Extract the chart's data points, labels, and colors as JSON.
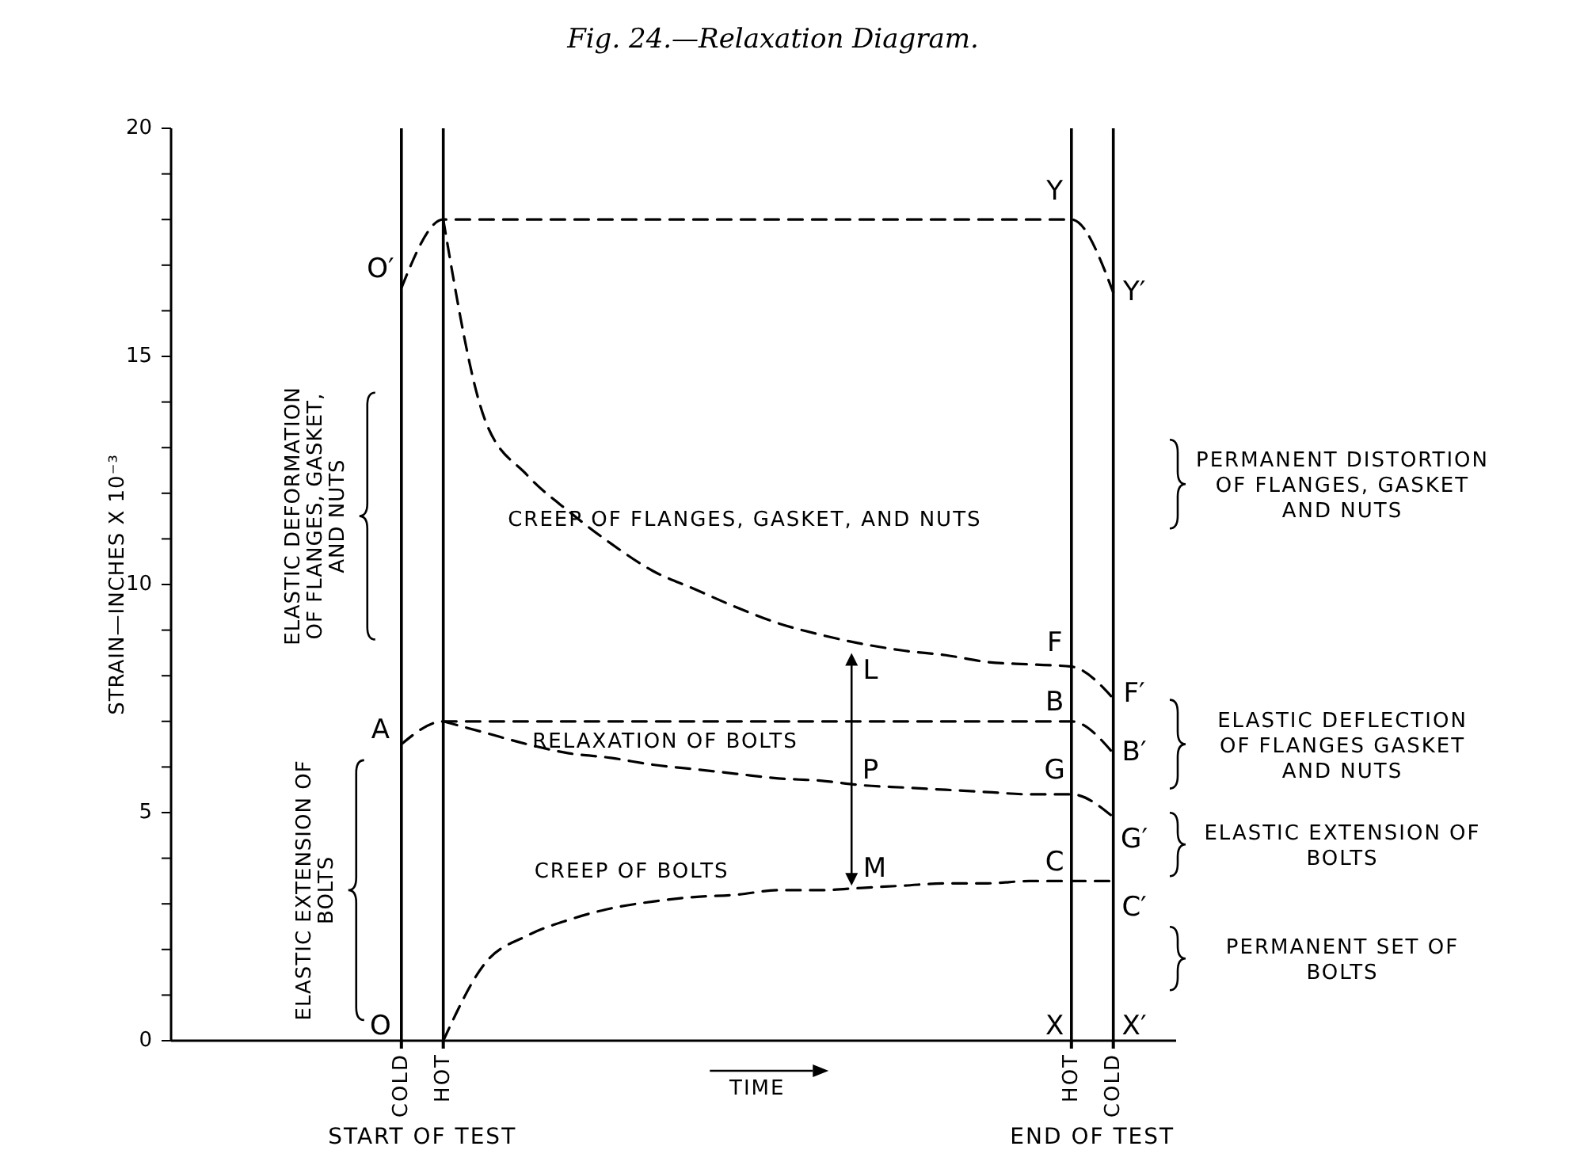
{
  "chart_data": {
    "type": "line",
    "title": "Fig. 24.—Relaxation Diagram.",
    "ylabel": "STRAIN—INCHES X 10⁻³",
    "xlabel": "TIME",
    "categories": [
      null,
      null,
      null,
      null,
      null,
      "COLD",
      "HOT",
      null,
      null,
      null,
      null,
      null,
      null,
      null,
      null,
      null,
      null,
      null,
      null,
      null,
      null,
      "HOT",
      "COLD",
      null
    ],
    "ylim": [
      0,
      20
    ],
    "yticks": [
      0,
      {
        "value": 1,
        "label": null
      },
      {
        "value": 2,
        "label": null
      },
      {
        "value": 3,
        "label": null
      },
      {
        "value": 4,
        "label": null
      },
      5,
      {
        "value": 6,
        "label": null
      },
      {
        "value": 7,
        "label": null
      },
      {
        "value": 8,
        "label": null
      },
      {
        "value": 9,
        "label": null
      },
      10,
      {
        "value": 11,
        "label": null
      },
      {
        "value": 12,
        "label": null
      },
      {
        "value": 13,
        "label": null
      },
      {
        "value": 14,
        "label": null
      },
      15,
      {
        "value": 16,
        "label": null
      },
      {
        "value": 17,
        "label": null
      },
      {
        "value": 18,
        "label": null
      },
      {
        "value": 19,
        "label": null
      },
      20
    ],
    "grid": "x",
    "series": [
      {
        "color": "#000000",
        "line_style": "dashed",
        "values": [
          null,
          null,
          null,
          null,
          null,
          16.5,
          18,
          18,
          18,
          18,
          18,
          18,
          18,
          18,
          18,
          18,
          18,
          18,
          18,
          18,
          18,
          18,
          16.4,
          null
        ]
      },
      {
        "color": "#000000",
        "line_style": "dashed",
        "values": [
          null,
          null,
          null,
          null,
          null,
          null,
          18,
          13.6,
          12.4,
          11.6,
          10.9,
          10.3,
          9.9,
          9.5,
          9.15,
          8.9,
          8.7,
          8.55,
          8.45,
          8.3,
          8.25,
          8.2,
          7.5,
          null
        ]
      },
      {
        "color": "#000000",
        "line_style": "dashed",
        "values": [
          null,
          null,
          null,
          null,
          null,
          6.5,
          7,
          7,
          7,
          7,
          7,
          7,
          7,
          7,
          7,
          7,
          7,
          7,
          7,
          7,
          7,
          7,
          6.3,
          null
        ]
      },
      {
        "color": "#000000",
        "line_style": "dashed",
        "values": [
          null,
          null,
          null,
          null,
          null,
          null,
          7,
          6.75,
          6.5,
          6.3,
          6.2,
          6.05,
          5.95,
          5.85,
          5.75,
          5.7,
          5.6,
          5.55,
          5.5,
          5.45,
          5.4,
          5.4,
          4.9,
          null
        ]
      },
      {
        "color": "#000000",
        "line_style": "dashed",
        "values": [
          null,
          null,
          null,
          null,
          null,
          null,
          0,
          1.7,
          2.3,
          2.65,
          2.9,
          3.05,
          3.15,
          3.2,
          3.3,
          3.3,
          3.35,
          3.4,
          3.45,
          3.45,
          3.5,
          3.5,
          3.5,
          null
        ]
      }
    ],
    "annotations": [
      "O′",
      "A",
      "O",
      "Y",
      "Y′",
      "F",
      "F′",
      "B",
      "B′",
      "G",
      "G′",
      "C",
      "C′",
      "X",
      "X′",
      "L",
      "P",
      "M",
      "CREEP OF FLANGES, GASKET, AND NUTS",
      "RELAXATION OF BOLTS",
      "CREEP OF BOLTS",
      "ELASTIC DEFORMATION OF FLANGES, GASKET, AND NUTS",
      "ELASTIC EXTENSION OF BOLTS",
      "PERMANENT DISTORTION OF FLANGES, GASKET AND NUTS",
      "ELASTIC DEFLECTION OF FLANGES GASKET AND NUTS",
      "ELASTIC EXTENSION OF BOLTS",
      "PERMANENT SET OF BOLTS",
      "START OF TEST",
      "END OF TEST"
    ]
  }
}
